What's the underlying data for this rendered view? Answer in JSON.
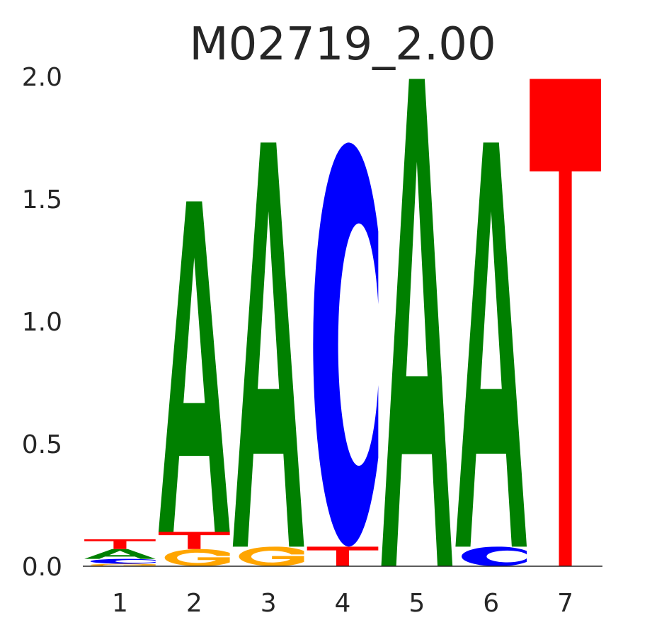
{
  "chart_data": {
    "type": "sequence-logo",
    "title": "M02719_2.00",
    "xlabel": "",
    "ylabel": "",
    "ylim": [
      0,
      2.0
    ],
    "yticks": [
      "0.0",
      "0.5",
      "1.0",
      "1.5",
      "2.0"
    ],
    "grid": false,
    "colors": {
      "A": "#008000",
      "C": "#0000ff",
      "G": "#ffa500",
      "T": "#ff0000"
    },
    "positions": [
      {
        "label": "1",
        "letters": [
          {
            "base": "G",
            "height": 0.01
          },
          {
            "base": "C",
            "height": 0.02
          },
          {
            "base": "A",
            "height": 0.04
          },
          {
            "base": "T",
            "height": 0.04
          }
        ]
      },
      {
        "label": "2",
        "letters": [
          {
            "base": "G",
            "height": 0.07
          },
          {
            "base": "T",
            "height": 0.07
          },
          {
            "base": "A",
            "height": 1.35
          }
        ]
      },
      {
        "label": "3",
        "letters": [
          {
            "base": "G",
            "height": 0.08
          },
          {
            "base": "A",
            "height": 1.65
          }
        ]
      },
      {
        "label": "4",
        "letters": [
          {
            "base": "T",
            "height": 0.08
          },
          {
            "base": "C",
            "height": 1.65
          }
        ]
      },
      {
        "label": "5",
        "letters": [
          {
            "base": "A",
            "height": 1.99
          }
        ]
      },
      {
        "label": "6",
        "letters": [
          {
            "base": "C",
            "height": 0.08
          },
          {
            "base": "A",
            "height": 1.65
          }
        ]
      },
      {
        "label": "7",
        "letters": [
          {
            "base": "T",
            "height": 1.99
          }
        ]
      }
    ]
  }
}
